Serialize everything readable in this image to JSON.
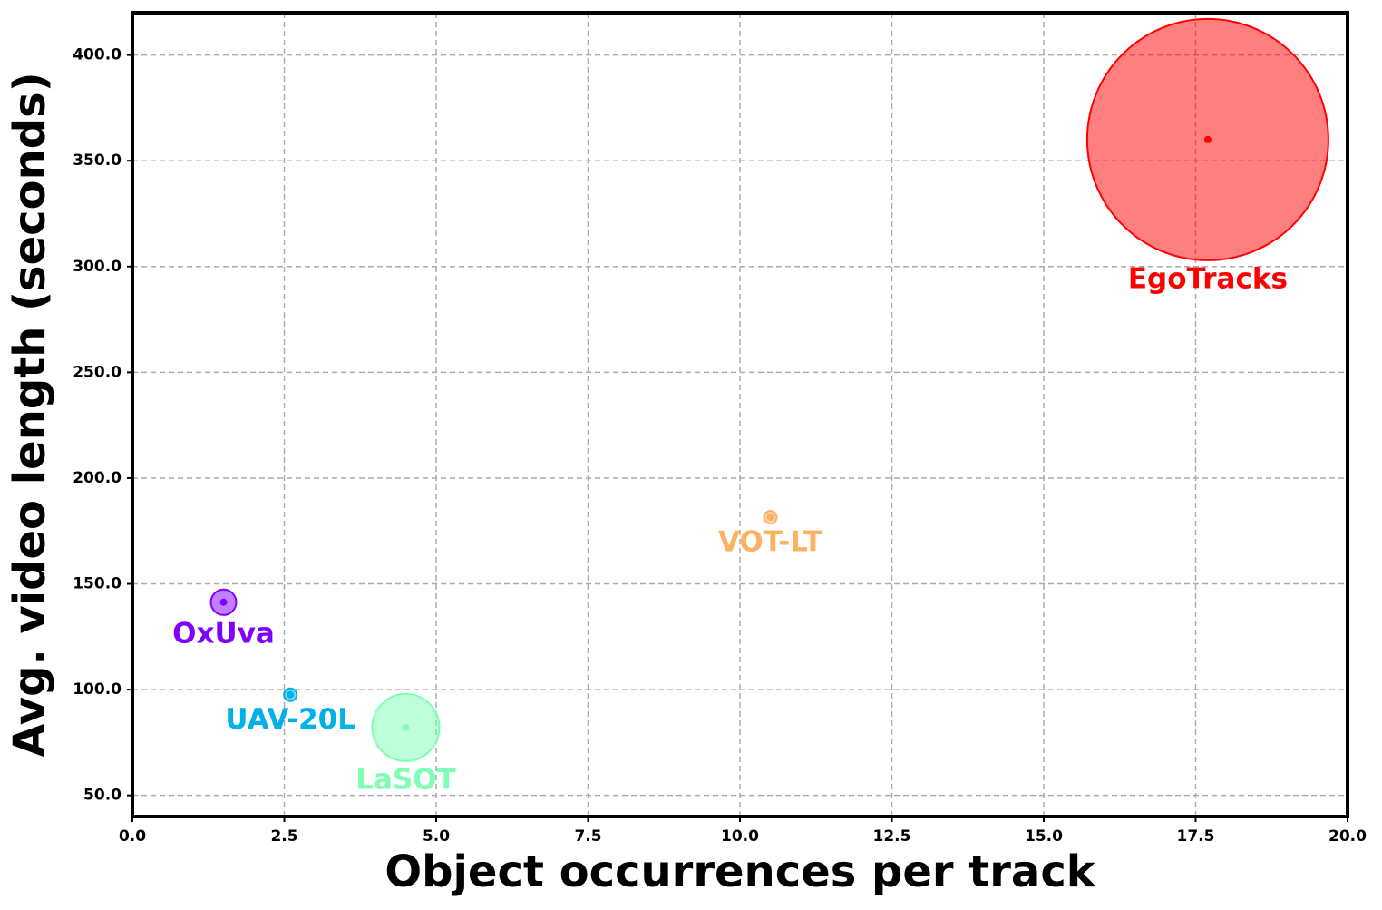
{
  "chart_data": {
    "type": "bubble",
    "xlabel": "Object occurrences per track",
    "ylabel": "Avg. video length (seconds)",
    "xlim": [
      0,
      20
    ],
    "ylim": [
      40,
      420
    ],
    "xticks": [
      {
        "value": 0,
        "label": "0.0"
      },
      {
        "value": 2.5,
        "label": "2.5"
      },
      {
        "value": 5,
        "label": "5.0"
      },
      {
        "value": 7.5,
        "label": "7.5"
      },
      {
        "value": 10,
        "label": "10.0"
      },
      {
        "value": 12.5,
        "label": "12.5"
      },
      {
        "value": 15,
        "label": "15.0"
      },
      {
        "value": 17.5,
        "label": "17.5"
      },
      {
        "value": 20,
        "label": "20.0"
      }
    ],
    "yticks": [
      {
        "value": 50,
        "label": "50.0"
      },
      {
        "value": 100,
        "label": "100.0"
      },
      {
        "value": 150,
        "label": "150.0"
      },
      {
        "value": 200,
        "label": "200.0"
      },
      {
        "value": 250,
        "label": "250.0"
      },
      {
        "value": 300,
        "label": "300.0"
      },
      {
        "value": 350,
        "label": "350.0"
      },
      {
        "value": 400,
        "label": "400.0"
      }
    ],
    "grid": true,
    "series": [
      {
        "name": "EgoTracks",
        "color": "#ff0000",
        "x": 17.7,
        "y": 360,
        "size": 17689
      },
      {
        "name": "VOT-LT",
        "color": "#ffb060",
        "x": 10.5,
        "y": 181.5,
        "size": 49
      },
      {
        "name": "OxUva",
        "color": "#8000ff",
        "x": 1.5,
        "y": 141.3,
        "size": 196
      },
      {
        "name": "UAV-20L",
        "color": "#00b0e8",
        "x": 2.6,
        "y": 97.6,
        "size": 49
      },
      {
        "name": "LaSOT",
        "color": "#80ffb4",
        "x": 4.5,
        "y": 82.1,
        "size": 1369
      }
    ]
  }
}
